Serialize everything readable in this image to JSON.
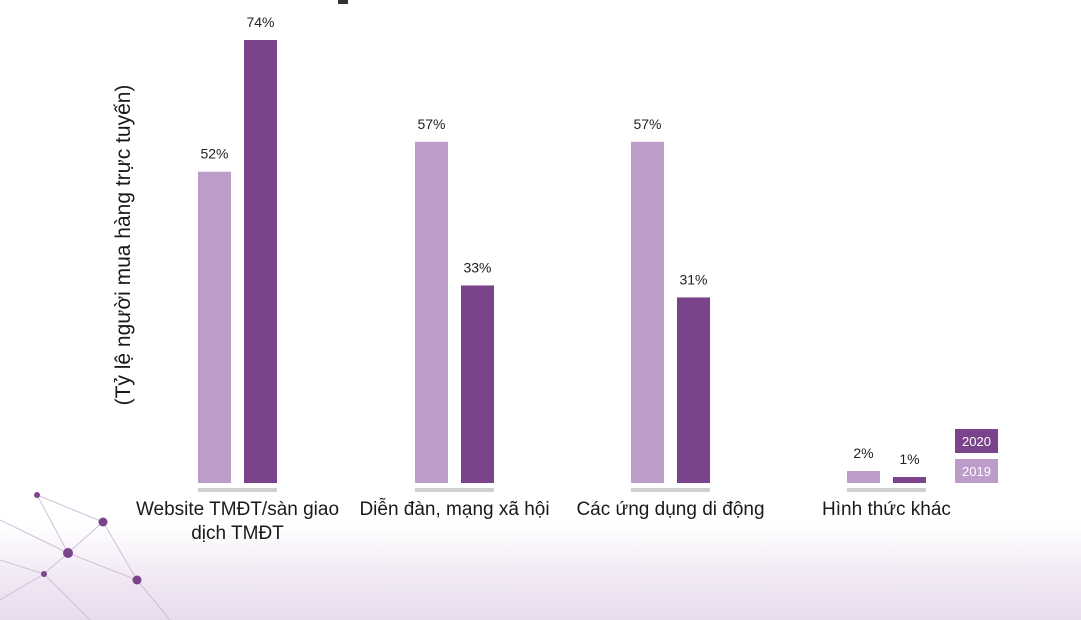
{
  "chart_data": {
    "type": "bar",
    "title": "",
    "xlabel": "",
    "ylabel": "(Tỷ lệ người mua hàng trực tuyến)",
    "ylim": [
      0,
      80
    ],
    "grid": false,
    "legend_position": "bottom-right",
    "categories": [
      [
        "Website TMĐT/sàn giao",
        "dịch TMĐT"
      ],
      [
        "Diễn đàn, mạng xã hội"
      ],
      [
        "Các ứng dụng di động"
      ],
      [
        "Hình thức khác"
      ]
    ],
    "series": [
      {
        "name": "2019",
        "color": "#bc9cc9",
        "values": [
          52,
          57,
          57,
          2
        ],
        "labels": [
          "52%",
          "57%",
          "57%",
          "2%"
        ]
      },
      {
        "name": "2020",
        "color": "#7b448a",
        "values": [
          74,
          33,
          31,
          1
        ],
        "labels": [
          "74%",
          "33%",
          "31%",
          "1%"
        ]
      }
    ]
  }
}
